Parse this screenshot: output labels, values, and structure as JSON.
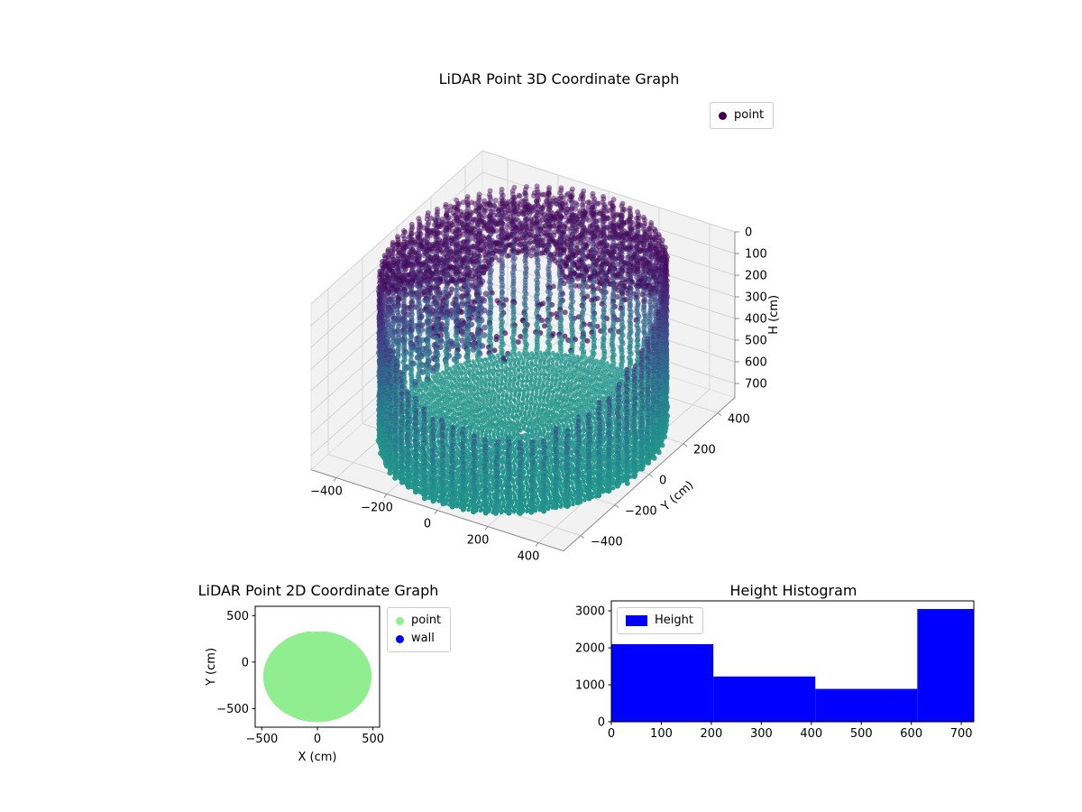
{
  "chart_data": [
    {
      "id": "scatter3d",
      "type": "scatter",
      "projection": "3d",
      "title": "LiDAR Point 3D Coordinate Graph",
      "ylabel": "Y (cm)",
      "zlabel": "H (cm)",
      "xlim": [
        -500,
        500
      ],
      "ylim": [
        -500,
        500
      ],
      "zlim": [
        0,
        765
      ],
      "z_axis_inverted": true,
      "x_ticks": [
        -400,
        -200,
        0,
        200,
        400
      ],
      "y_ticks": [
        400,
        200,
        0,
        -200,
        -400
      ],
      "z_ticks": [
        0,
        100,
        200,
        300,
        400,
        500,
        600,
        700
      ],
      "legend": [
        {
          "label": "point",
          "color": "#440154"
        }
      ],
      "colormap": "viridis, color mapped to height H (0 = dark purple, ~760 = teal)",
      "point_cloud_model": {
        "description": "LiDAR scan of a cylindrical room: teal floor rings at H~760 cm, cylindrical wall columns of radius ~470 cm, dense dark ceiling cap near H=0 along the back rim, sparse dark noise cluster on the left at mid heights",
        "radius_cm": 470,
        "floor_h_cm": 756,
        "floor_ring_step_cm": 13,
        "wall_columns": 76,
        "wall_point_step_cm": 13,
        "front_wall_min_h_cm": 430,
        "ceiling_cap": {
          "r_min_cm": 130,
          "h_max_cm": 80
        },
        "noise_cluster": {
          "theta_deg": 205,
          "count": 260,
          "h_range": [
            60,
            400
          ]
        }
      }
    },
    {
      "id": "scatter2d",
      "type": "scatter",
      "title": "LiDAR Point 2D Coordinate Graph",
      "xlabel": "X (cm)",
      "ylabel": "Y (cm)",
      "xlim": [
        -560,
        560
      ],
      "ylim": [
        -700,
        600
      ],
      "x_ticks": [
        -500,
        0,
        500
      ],
      "y_ticks": [
        500,
        0,
        -500
      ],
      "legend": [
        {
          "label": "point",
          "color": "#90ee90"
        },
        {
          "label": "wall",
          "color": "#0000ff"
        }
      ],
      "blob": {
        "center": [
          0,
          -155
        ],
        "radius": 470,
        "y_max": 310,
        "color": "#90ee90"
      }
    },
    {
      "id": "histogram",
      "type": "bar",
      "title": "Height Histogram",
      "legend": [
        {
          "label": "Height",
          "color": "#0000ff"
        }
      ],
      "bins": [
        0,
        204,
        408,
        612,
        816
      ],
      "counts": [
        2100,
        1225,
        890,
        3050
      ],
      "bar_color": "#0000ff",
      "xlim": [
        0,
        725
      ],
      "ylim": [
        0,
        3270
      ],
      "x_ticks": [
        0,
        100,
        200,
        300,
        400,
        500,
        600,
        700
      ],
      "y_ticks": [
        0,
        1000,
        2000,
        3000
      ]
    }
  ]
}
